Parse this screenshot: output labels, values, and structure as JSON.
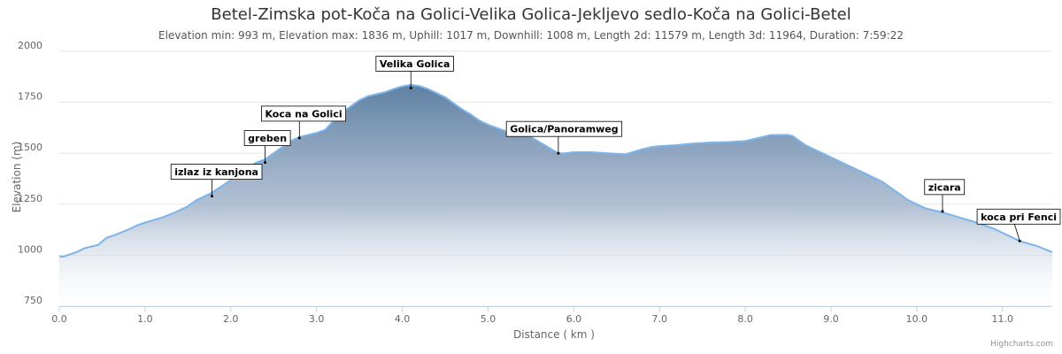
{
  "chart_data": {
    "type": "area",
    "title": "Betel-Zimska pot-Koča na Golici-Velika Golica-Jekljevo sedlo-Koča na Golici-Betel",
    "subtitle": "Elevation min: 993 m, Elevation max: 1836 m, Uphill: 1017 m, Downhill: 1008 m, Length 2d: 11579 m, Length 3d: 11964, Duration: 7:59:22",
    "xlabel": "Distance ( km )",
    "ylabel": "Elevation (m)",
    "xlim": [
      0,
      11.58
    ],
    "ylim": [
      750,
      2000
    ],
    "x_ticks": [
      "0.0",
      "1.0",
      "2.0",
      "3.0",
      "4.0",
      "5.0",
      "6.0",
      "7.0",
      "8.0",
      "9.0",
      "10.0",
      "11.0"
    ],
    "y_ticks": [
      "750",
      "1000",
      "1250",
      "1500",
      "1750",
      "2000"
    ],
    "grid": true,
    "legend": "none",
    "color": "#7cb5ec",
    "series": [
      {
        "x": [
          0,
          0.05,
          0.2,
          0.3,
          0.45,
          0.55,
          0.65,
          0.8,
          0.9,
          1.0,
          1.2,
          1.35,
          1.5,
          1.6,
          1.75,
          1.9,
          2.0,
          2.1,
          2.2,
          2.3,
          2.4,
          2.5,
          2.6,
          2.7,
          2.8,
          2.9,
          3.0,
          3.1,
          3.2,
          3.3,
          3.4,
          3.5,
          3.6,
          3.7,
          3.8,
          3.9,
          4.0,
          4.1,
          4.2,
          4.3,
          4.4,
          4.5,
          4.6,
          4.7,
          4.8,
          4.9,
          5.0,
          5.1,
          5.2,
          5.3,
          5.5,
          5.7,
          5.82,
          5.9,
          6.0,
          6.2,
          6.4,
          6.6,
          6.8,
          6.9,
          7.0,
          7.2,
          7.4,
          7.6,
          7.8,
          8.0,
          8.1,
          8.2,
          8.3,
          8.5,
          8.55,
          8.6,
          8.7,
          8.8,
          8.9,
          9.0,
          9.1,
          9.2,
          9.3,
          9.4,
          9.5,
          9.6,
          9.7,
          9.8,
          9.9,
          10.0,
          10.1,
          10.3,
          10.5,
          10.7,
          10.9,
          11.0,
          11.2,
          11.4,
          11.58
        ],
        "y": [
          995,
          993,
          1015,
          1035,
          1050,
          1085,
          1100,
          1125,
          1145,
          1160,
          1185,
          1210,
          1240,
          1270,
          1300,
          1340,
          1370,
          1400,
          1430,
          1455,
          1470,
          1500,
          1530,
          1560,
          1580,
          1590,
          1600,
          1615,
          1660,
          1700,
          1730,
          1760,
          1780,
          1790,
          1800,
          1815,
          1828,
          1836,
          1830,
          1815,
          1795,
          1775,
          1745,
          1715,
          1690,
          1660,
          1640,
          1625,
          1610,
          1600,
          1580,
          1530,
          1500,
          1500,
          1505,
          1505,
          1500,
          1495,
          1520,
          1530,
          1535,
          1540,
          1548,
          1553,
          1555,
          1560,
          1570,
          1580,
          1590,
          1590,
          1585,
          1570,
          1540,
          1520,
          1500,
          1480,
          1460,
          1440,
          1420,
          1400,
          1380,
          1360,
          1330,
          1300,
          1270,
          1250,
          1230,
          1210,
          1185,
          1160,
          1130,
          1110,
          1070,
          1045,
          1015
        ]
      }
    ],
    "annotations": [
      {
        "label": "izlaz iz kanjona",
        "x": 1.78,
        "y": 1290
      },
      {
        "label": "greben",
        "x": 2.4,
        "y": 1455
      },
      {
        "label": "Koca na Golici",
        "x": 2.8,
        "y": 1575
      },
      {
        "label": "Velika Golica",
        "x": 4.1,
        "y": 1820
      },
      {
        "label": "Golica/Panoramweg",
        "x": 5.82,
        "y": 1500
      },
      {
        "label": "zicara",
        "x": 10.3,
        "y": 1215
      },
      {
        "label": "koca pri Fenci",
        "x": 11.2,
        "y": 1070
      }
    ]
  },
  "credits": "Highcharts.com"
}
